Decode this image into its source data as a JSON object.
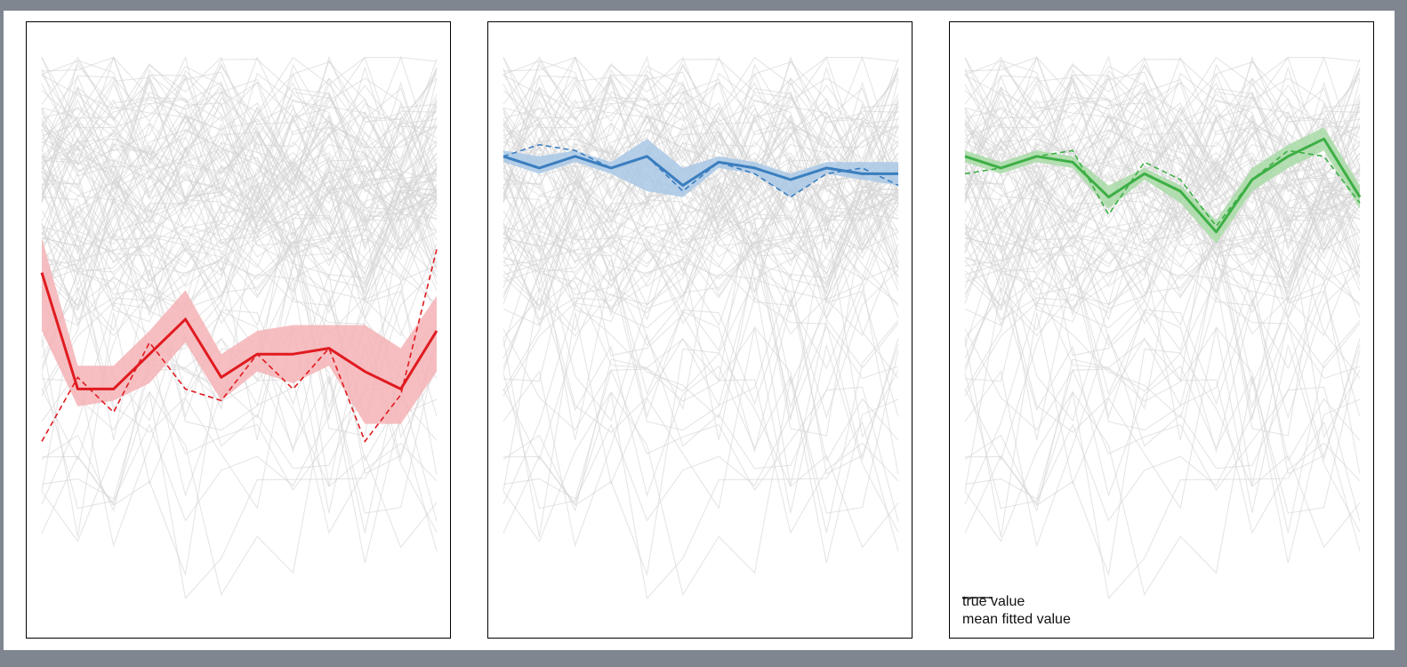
{
  "legend": {
    "true_label": "true value",
    "fitted_label": "mean fitted value"
  },
  "colors": {
    "background_lines": "#d3d3d3",
    "red": "#e01b20",
    "red_band": "#f4b3b6",
    "blue": "#3a7ebf",
    "blue_band": "#a9c8e6",
    "green": "#3daf45",
    "green_band": "#a8dba6"
  },
  "chart_data": [
    {
      "type": "line",
      "title": "",
      "xlabel": "",
      "ylabel": "",
      "x": [
        0,
        1,
        2,
        3,
        4,
        5,
        6,
        7,
        8,
        9,
        10,
        11
      ],
      "ylim": [
        0,
        100
      ],
      "grid": false,
      "series": [
        {
          "role": "true",
          "color": "#e01b20",
          "values": [
            31,
            42,
            36,
            48,
            40,
            38,
            46,
            40,
            47,
            31,
            39,
            64
          ]
        },
        {
          "role": "fitted",
          "color": "#e01b20",
          "values": [
            60,
            40,
            40,
            46,
            52,
            42,
            46,
            46,
            47,
            43,
            40,
            50
          ]
        },
        {
          "role": "band_upper",
          "color": "#f4b3b6",
          "values": [
            66,
            44,
            44,
            50,
            57,
            46,
            50,
            51,
            51,
            51,
            47,
            56
          ]
        },
        {
          "role": "band_lower",
          "color": "#f4b3b6",
          "values": [
            50,
            37,
            38,
            41,
            48,
            38,
            43,
            41,
            44,
            34,
            34,
            43
          ]
        }
      ]
    },
    {
      "type": "line",
      "title": "",
      "xlabel": "",
      "ylabel": "",
      "x": [
        0,
        1,
        2,
        3,
        4,
        5,
        6,
        7,
        8,
        9,
        10,
        11
      ],
      "ylim": [
        0,
        100
      ],
      "grid": false,
      "series": [
        {
          "role": "true",
          "color": "#3a7ebf",
          "values": [
            80,
            82,
            81,
            78,
            80,
            74,
            79,
            77,
            73,
            77,
            78,
            75
          ]
        },
        {
          "role": "fitted",
          "color": "#3a7ebf",
          "values": [
            80,
            78,
            80,
            78,
            80,
            75,
            79,
            78,
            76,
            78,
            77,
            77
          ]
        },
        {
          "role": "band_upper",
          "color": "#a9c8e6",
          "values": [
            81,
            80,
            81,
            79,
            83,
            78,
            80,
            79,
            77,
            79,
            79,
            79
          ]
        },
        {
          "role": "band_lower",
          "color": "#a9c8e6",
          "values": [
            79,
            77,
            79,
            77,
            74,
            73,
            78,
            77,
            73,
            77,
            76,
            75
          ]
        }
      ]
    },
    {
      "type": "line",
      "title": "",
      "xlabel": "",
      "ylabel": "",
      "x": [
        0,
        1,
        2,
        3,
        4,
        5,
        6,
        7,
        8,
        9,
        10,
        11
      ],
      "ylim": [
        0,
        100
      ],
      "grid": false,
      "legend_position": "bottom-left",
      "series": [
        {
          "role": "true",
          "color": "#3daf45",
          "values": [
            77,
            78,
            80,
            81,
            70,
            79,
            76,
            68,
            76,
            81,
            80,
            72
          ]
        },
        {
          "role": "fitted",
          "color": "#3daf45",
          "values": [
            80,
            78,
            80,
            79,
            73,
            77,
            74,
            67,
            76,
            80,
            83,
            73
          ]
        },
        {
          "role": "band_upper",
          "color": "#a8dba6",
          "values": [
            81,
            79,
            81,
            80,
            75,
            78,
            75,
            69,
            78,
            82,
            85,
            75
          ]
        },
        {
          "role": "band_lower",
          "color": "#a8dba6",
          "values": [
            79,
            77,
            79,
            78,
            71,
            76,
            72,
            65,
            74,
            78,
            81,
            71
          ]
        }
      ]
    }
  ]
}
